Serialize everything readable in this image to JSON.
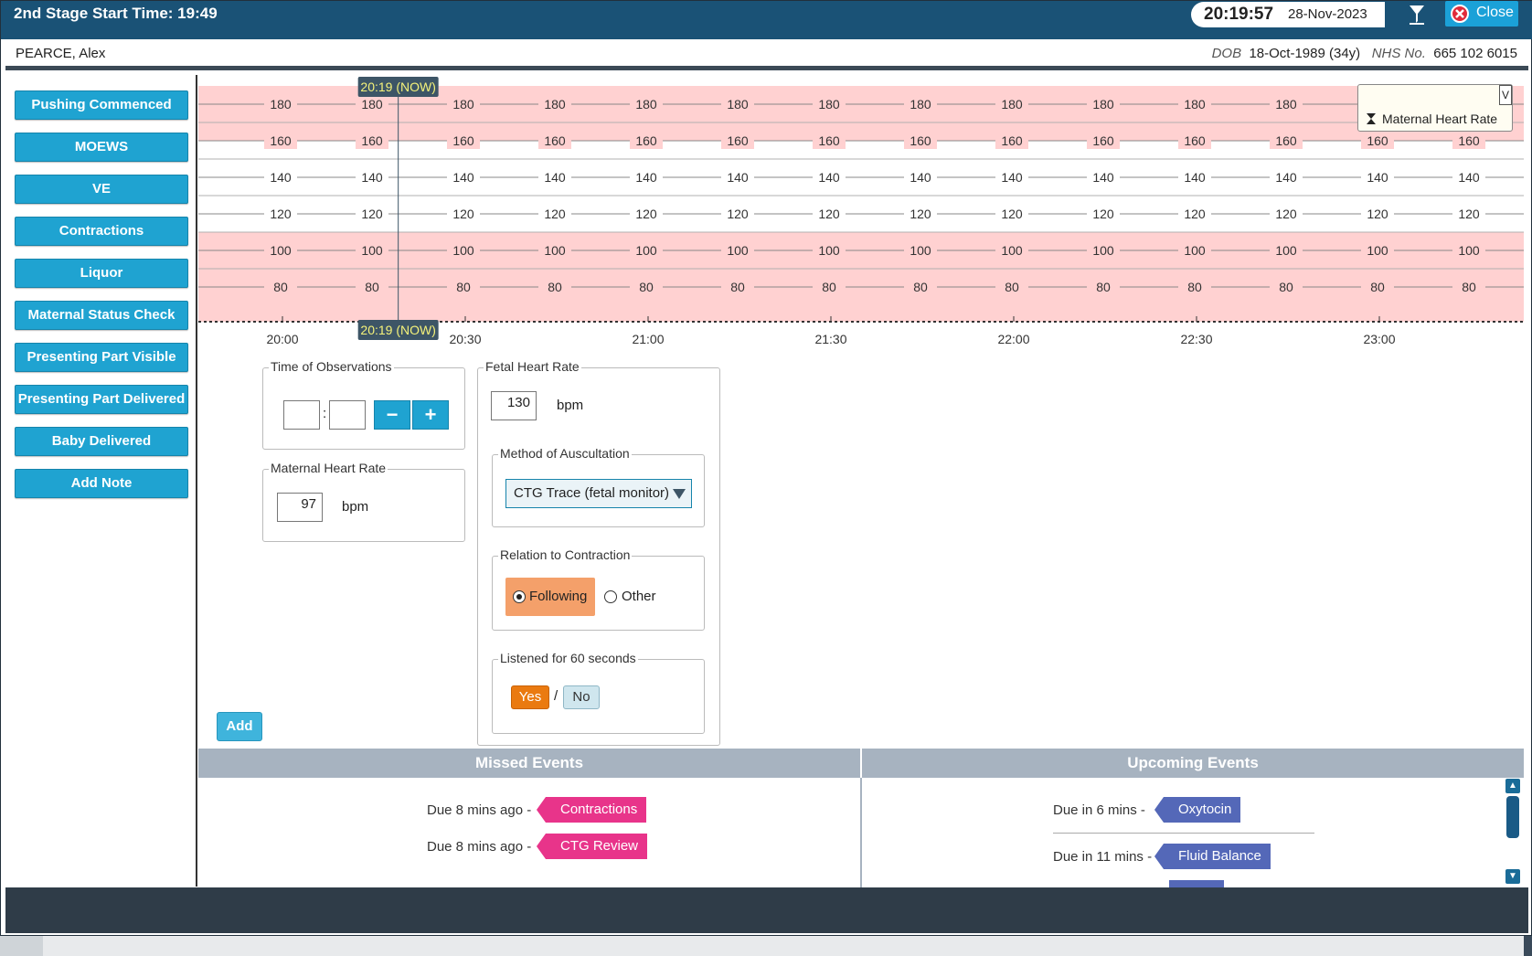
{
  "titlebar": {
    "title": "2nd Stage Start Time: 19:49",
    "clock_time": "20:19:57",
    "clock_date": "28-Nov-2023",
    "filter_icon": "hourglass-filter-icon",
    "close_label": "Close"
  },
  "patient": {
    "name": "PEARCE, Alex",
    "dob_label": "DOB",
    "dob_value": "18-Oct-1989 (34y)",
    "nhs_label": "NHS No.",
    "nhs_value": "665 102 6015"
  },
  "sidebar": {
    "items": [
      {
        "label": "Pushing Commenced"
      },
      {
        "label": "MOEWS"
      },
      {
        "label": "VE"
      },
      {
        "label": "Contractions"
      },
      {
        "label": "Liquor"
      },
      {
        "label": "Maternal Status Check"
      },
      {
        "label": "Presenting Part Visible"
      },
      {
        "label": "Presenting Part Delivered"
      },
      {
        "label": "Baby Delivered"
      },
      {
        "label": "Add Note"
      }
    ]
  },
  "chart_data": {
    "type": "line",
    "title": "",
    "now_marker": "20:19 (NOW)",
    "y_ticks": [
      180,
      160,
      140,
      120,
      100,
      80
    ],
    "y_bands_highlighted": [
      "above 160",
      "below 110"
    ],
    "x_ticks": [
      "20:00",
      "20:30",
      "21:00",
      "21:30",
      "22:00",
      "22:30",
      "23:00"
    ],
    "legend": {
      "label": "Maternal Heart Rate",
      "collapse_label": "V",
      "placement": "top-right"
    },
    "series": [],
    "colors": {
      "band": "#ffd1d1",
      "grid": "#888888",
      "now_marker": "#3d5566",
      "now_text": "#f5f27a"
    }
  },
  "form": {
    "time_obs": {
      "legend": "Time of Observations",
      "hours": "",
      "minutes": "",
      "separator": ":",
      "minus": "−",
      "plus": "+"
    },
    "maternal_hr": {
      "legend": "Maternal Heart Rate",
      "value": "97",
      "unit": "bpm"
    },
    "fetal_hr": {
      "legend": "Fetal Heart Rate",
      "value": "130",
      "unit": "bpm"
    },
    "auscultation": {
      "legend": "Method of Auscultation",
      "selected": "CTG Trace (fetal monitor)"
    },
    "relation": {
      "legend": "Relation to Contraction",
      "option_1": "Following",
      "option_2": "Other",
      "selected": "Following"
    },
    "listened": {
      "legend": "Listened for 60 seconds",
      "yes": "Yes",
      "separator": "/",
      "no": "No",
      "selected": "Yes"
    },
    "add_label": "Add"
  },
  "events": {
    "missed_title": "Missed Events",
    "upcoming_title": "Upcoming Events",
    "missed": [
      {
        "due": "Due 8 mins ago -",
        "name": "Contractions"
      },
      {
        "due": "Due 8 mins ago -",
        "name": "CTG Review"
      }
    ],
    "upcoming": [
      {
        "due": "Due in 6 mins -",
        "name": "Oxytocin"
      },
      {
        "due": "Due in 11 mins -",
        "name": "Fluid Balance"
      }
    ]
  }
}
